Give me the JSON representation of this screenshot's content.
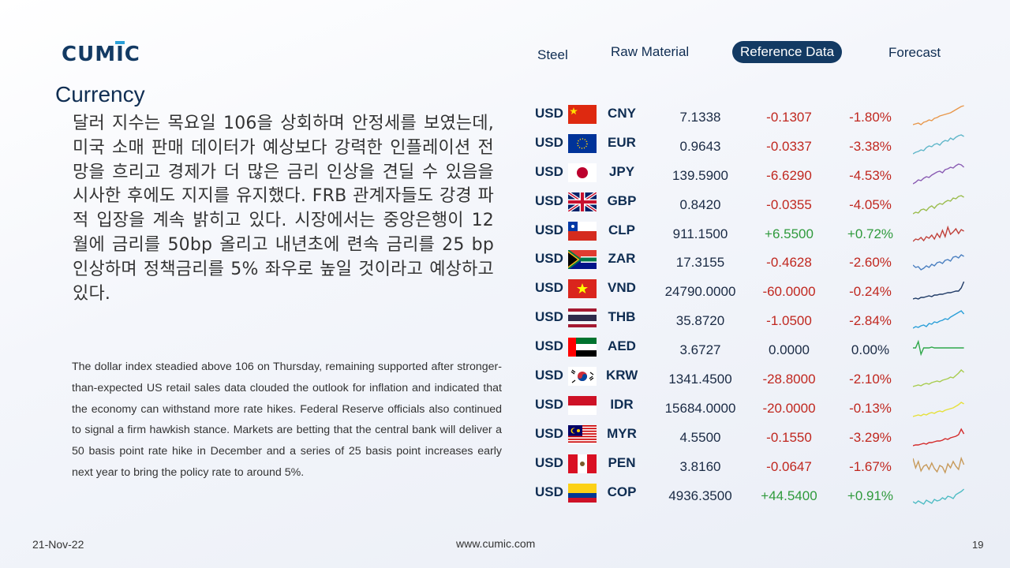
{
  "brand": {
    "logo_text": "CUMIC",
    "logo_color": "#133a63",
    "accent_color": "#2aa0d8"
  },
  "nav": {
    "items": [
      {
        "label": "Steel",
        "active": false
      },
      {
        "label": "Raw Material",
        "active": false
      },
      {
        "label": "Reference Data",
        "active": true
      },
      {
        "label": "Forecast",
        "active": false
      }
    ]
  },
  "section": {
    "title": "Currency"
  },
  "commentary": {
    "korean": "달러 지수는 목요일 106을 상회하며 안정세를 보였는데, 미국 소매 판매 데이터가 예상보다 강력한 인플레이션 전망을 흐리고 경제가 더 많은 금리 인상을 견딜 수 있음을 시사한 후에도 지지를 유지했다. FRB 관계자들도 강경 파적 입장을 계속 밝히고 있다. 시장에서는 중앙은행이 12월에 금리를 50bp 올리고 내년초에 련속 금리를 25 bp인상하며 정책금리를 5% 좌우로 높일 것이라고 예상하고 있다.",
    "english": "The dollar index steadied above 106 on Thursday, remaining supported after stronger-than-expected US retail sales data clouded the outlook for inflation and indicated that the economy can withstand more rate hikes. Federal Reserve officials also continued to signal a firm hawkish stance. Markets are betting that the central bank will deliver a 50 basis point rate hike in December and a series of 25 basis point increases early next year to bring the policy rate to around 5%."
  },
  "rates": [
    {
      "base": "USD",
      "flag": "cn-flag",
      "code": "CNY",
      "rate": "7.1338",
      "change": "-0.1307",
      "pct": "-1.80%",
      "dir": "neg",
      "spark_color": "#e8974a"
    },
    {
      "base": "USD",
      "flag": "eu-flag",
      "code": "EUR",
      "rate": "0.9643",
      "change": "-0.0337",
      "pct": "-3.38%",
      "dir": "neg",
      "spark_color": "#5fb6c9"
    },
    {
      "base": "USD",
      "flag": "jp-flag",
      "code": "JPY",
      "rate": "139.5900",
      "change": "-6.6290",
      "pct": "-4.53%",
      "dir": "neg",
      "spark_color": "#8a5bb3"
    },
    {
      "base": "USD",
      "flag": "gb-flag",
      "code": "GBP",
      "rate": "0.8420",
      "change": "-0.0355",
      "pct": "-4.05%",
      "dir": "neg",
      "spark_color": "#9bbd4e"
    },
    {
      "base": "USD",
      "flag": "cl-flag",
      "code": "CLP",
      "rate": "911.1500",
      "change": "+6.5500",
      "pct": "+0.72%",
      "dir": "pos",
      "spark_color": "#c0413a"
    },
    {
      "base": "USD",
      "flag": "za-flag",
      "code": "ZAR",
      "rate": "17.3155",
      "change": "-0.4628",
      "pct": "-2.60%",
      "dir": "neg",
      "spark_color": "#4a7fc0"
    },
    {
      "base": "USD",
      "flag": "vn-flag",
      "code": "VND",
      "rate": "24790.0000",
      "change": "-60.0000",
      "pct": "-0.24%",
      "dir": "neg",
      "spark_color": "#1f3a66"
    },
    {
      "base": "USD",
      "flag": "th-flag",
      "code": "THB",
      "rate": "35.8720",
      "change": "-1.0500",
      "pct": "-2.84%",
      "dir": "neg",
      "spark_color": "#2a9fd8"
    },
    {
      "base": "USD",
      "flag": "ae-flag",
      "code": "AED",
      "rate": "3.6727",
      "change": "0.0000",
      "pct": "0.00%",
      "dir": "flat",
      "spark_color": "#2fa84a"
    },
    {
      "base": "USD",
      "flag": "kr-flag",
      "code": "KRW",
      "rate": "1341.4500",
      "change": "-28.8000",
      "pct": "-2.10%",
      "dir": "neg",
      "spark_color": "#a8cc4e"
    },
    {
      "base": "USD",
      "flag": "id-flag",
      "code": "IDR",
      "rate": "15684.0000",
      "change": "-20.0000",
      "pct": "-0.13%",
      "dir": "neg",
      "spark_color": "#e6e03a"
    },
    {
      "base": "USD",
      "flag": "my-flag",
      "code": "MYR",
      "rate": "4.5500",
      "change": "-0.1550",
      "pct": "-3.29%",
      "dir": "neg",
      "spark_color": "#d42a2a"
    },
    {
      "base": "USD",
      "flag": "pe-flag",
      "code": "PEN",
      "rate": "3.8160",
      "change": "-0.0647",
      "pct": "-1.67%",
      "dir": "neg",
      "spark_color": "#c79a5a"
    },
    {
      "base": "USD",
      "flag": "co-flag",
      "code": "COP",
      "rate": "4936.3500",
      "change": "+44.5400",
      "pct": "+0.91%",
      "dir": "pos",
      "spark_color": "#4fbcc4"
    }
  ],
  "footer": {
    "date": "21-Nov-22",
    "url": "www.cumic.com",
    "page": "19"
  }
}
